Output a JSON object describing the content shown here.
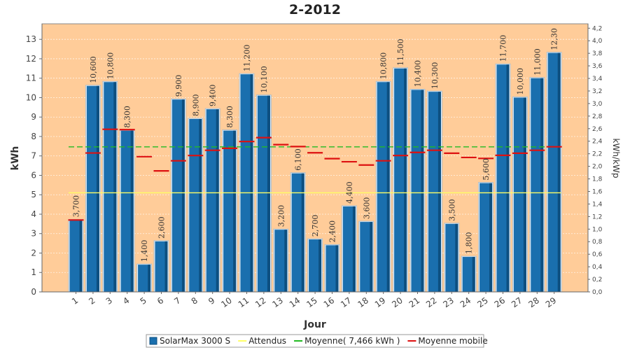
{
  "chart_data": {
    "type": "bar",
    "title": "2-2012",
    "xlabel": "Jour",
    "ylabel": "kWh",
    "y2label": "kWh/kWp",
    "ylim": [
      0,
      13.8
    ],
    "y_ticks": [
      0,
      1,
      2,
      3,
      4,
      5,
      6,
      7,
      8,
      9,
      10,
      11,
      12,
      13
    ],
    "y2lim": [
      0,
      4.27
    ],
    "y2_ticks": [
      "0,0",
      "0,2",
      "0,4",
      "0,6",
      "0,8",
      "1,0",
      "1,2",
      "1,4",
      "1,6",
      "1,8",
      "2,0",
      "2,2",
      "2,4",
      "2,6",
      "2,8",
      "3,0",
      "3,2",
      "3,4",
      "3,6",
      "3,8",
      "4,0",
      "4,2"
    ],
    "y2_tick_values": [
      0,
      0.2,
      0.4,
      0.6,
      0.8,
      1.0,
      1.2,
      1.4,
      1.6,
      1.8,
      2.0,
      2.2,
      2.4,
      2.6,
      2.8,
      3.0,
      3.2,
      3.4,
      3.6,
      3.8,
      4.0,
      4.2
    ],
    "categories": [
      "1",
      "2",
      "3",
      "4",
      "5",
      "6",
      "7",
      "8",
      "9",
      "10",
      "11",
      "12",
      "13",
      "14",
      "15",
      "16",
      "17",
      "18",
      "19",
      "20",
      "21",
      "22",
      "23",
      "24",
      "25",
      "26",
      "27",
      "28",
      "29"
    ],
    "series": [
      {
        "name": "SolarMax 3000 S",
        "type": "bar",
        "color": "#1a6fae",
        "values": [
          3.7,
          10.6,
          10.8,
          8.3,
          1.4,
          2.6,
          9.9,
          8.9,
          9.4,
          8.3,
          11.2,
          10.1,
          3.2,
          6.1,
          2.7,
          2.4,
          4.4,
          3.6,
          10.8,
          11.5,
          10.4,
          10.3,
          3.5,
          1.8,
          5.6,
          11.7,
          10.0,
          11.0,
          12.3
        ],
        "labels": [
          "3,700",
          "10,600",
          "10,800",
          "8,300",
          "1,400",
          "2,600",
          "9,900",
          "8,900",
          "9,400",
          "8,300",
          "11,200",
          "10,100",
          "3,200",
          "6,100",
          "2,700",
          "2,400",
          "4,400",
          "3,600",
          "10,800",
          "11,500",
          "10,400",
          "10,300",
          "3,500",
          "1,800",
          "5,600",
          "11,700",
          "10,000",
          "11,000",
          "12,30"
        ]
      },
      {
        "name": "Attendus",
        "type": "hline",
        "color": "#ffff66",
        "value": 5.1
      },
      {
        "name": "Moyenne( 7,466 kWh )",
        "type": "hline",
        "color": "#22bb22",
        "value": 7.466
      },
      {
        "name": "Moyenne mobile",
        "type": "segments",
        "color": "#dd1111",
        "values": [
          3.7,
          7.15,
          8.37,
          8.35,
          6.96,
          6.23,
          6.75,
          7.02,
          7.29,
          7.39,
          7.74,
          7.94,
          7.58,
          7.48,
          7.16,
          6.86,
          6.7,
          6.53,
          6.75,
          7.02,
          7.18,
          7.29,
          7.14,
          6.92,
          6.87,
          7.03,
          7.14,
          7.29,
          7.47
        ]
      }
    ],
    "grid": true,
    "legend_position": "bottom"
  }
}
